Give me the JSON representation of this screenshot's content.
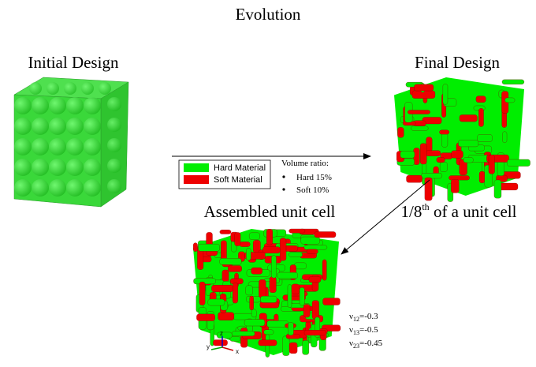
{
  "title": "Evolution",
  "initial_design": {
    "label": "Initial Design"
  },
  "final_design": {
    "label": "Final Design"
  },
  "legend": {
    "items": [
      {
        "label": "Hard Material",
        "color": "#00ee00"
      },
      {
        "label": "Soft Material",
        "color": "#ee0000"
      }
    ]
  },
  "volume_ratio": {
    "heading": "Volume ratio:",
    "items": [
      "Hard 15%",
      "Soft 10%"
    ]
  },
  "eighth_label": {
    "prefix": "1/8",
    "superscript": "th",
    "suffix": " of a unit cell"
  },
  "assembled": {
    "label": "Assembled unit cell"
  },
  "poisson_ratios": [
    {
      "symbol": "ν",
      "subscript": "12",
      "value": "=-0.3"
    },
    {
      "symbol": "ν",
      "subscript": "13",
      "value": "=-0.5"
    },
    {
      "symbol": "ν",
      "subscript": "23",
      "value": "=-0.45"
    }
  ],
  "axes": [
    "y",
    "z",
    "x"
  ]
}
